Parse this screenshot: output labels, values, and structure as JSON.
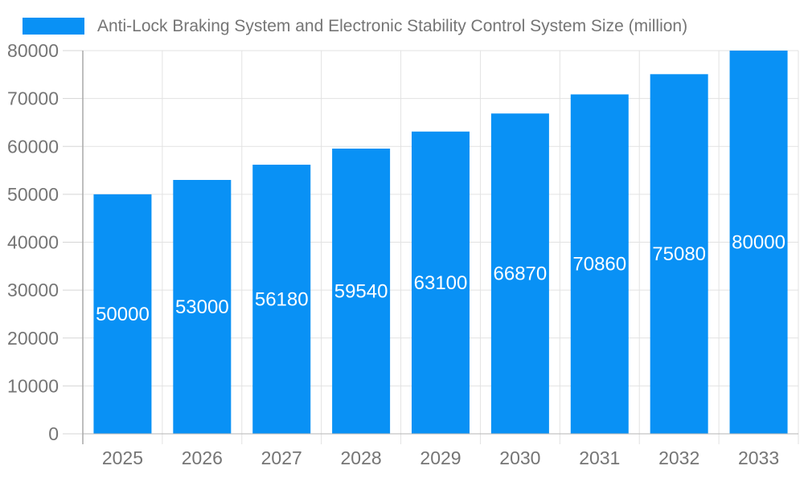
{
  "chart_data": {
    "type": "bar",
    "title": "Anti-Lock Braking System and Electronic Stability Control System Size (million)",
    "categories": [
      "2025",
      "2026",
      "2027",
      "2028",
      "2029",
      "2030",
      "2031",
      "2032",
      "2033"
    ],
    "values": [
      50000,
      53000,
      56180,
      59540,
      63100,
      66870,
      70860,
      75080,
      80000
    ],
    "xlabel": "",
    "ylabel": "",
    "ylim": [
      0,
      80000
    ],
    "ytick_step": 10000,
    "yticks": [
      0,
      10000,
      20000,
      30000,
      40000,
      50000,
      60000,
      70000,
      80000
    ],
    "grid": true,
    "legend_position": "top-left",
    "value_labels": "inside-center"
  },
  "legend": {
    "label": "Anti-Lock Braking System and Electronic Stability Control System Size (million)"
  },
  "colors": {
    "bar": "#0991f5",
    "value_label": "#ffffff",
    "grid_line": "#e2e2e2",
    "axis_line": "#a9a9a9",
    "baseline": "#b5b5b5",
    "tick_segment": "#d5d5d5",
    "tick_label": "#757575",
    "title_text": "#757575",
    "background": "#ffffff"
  }
}
